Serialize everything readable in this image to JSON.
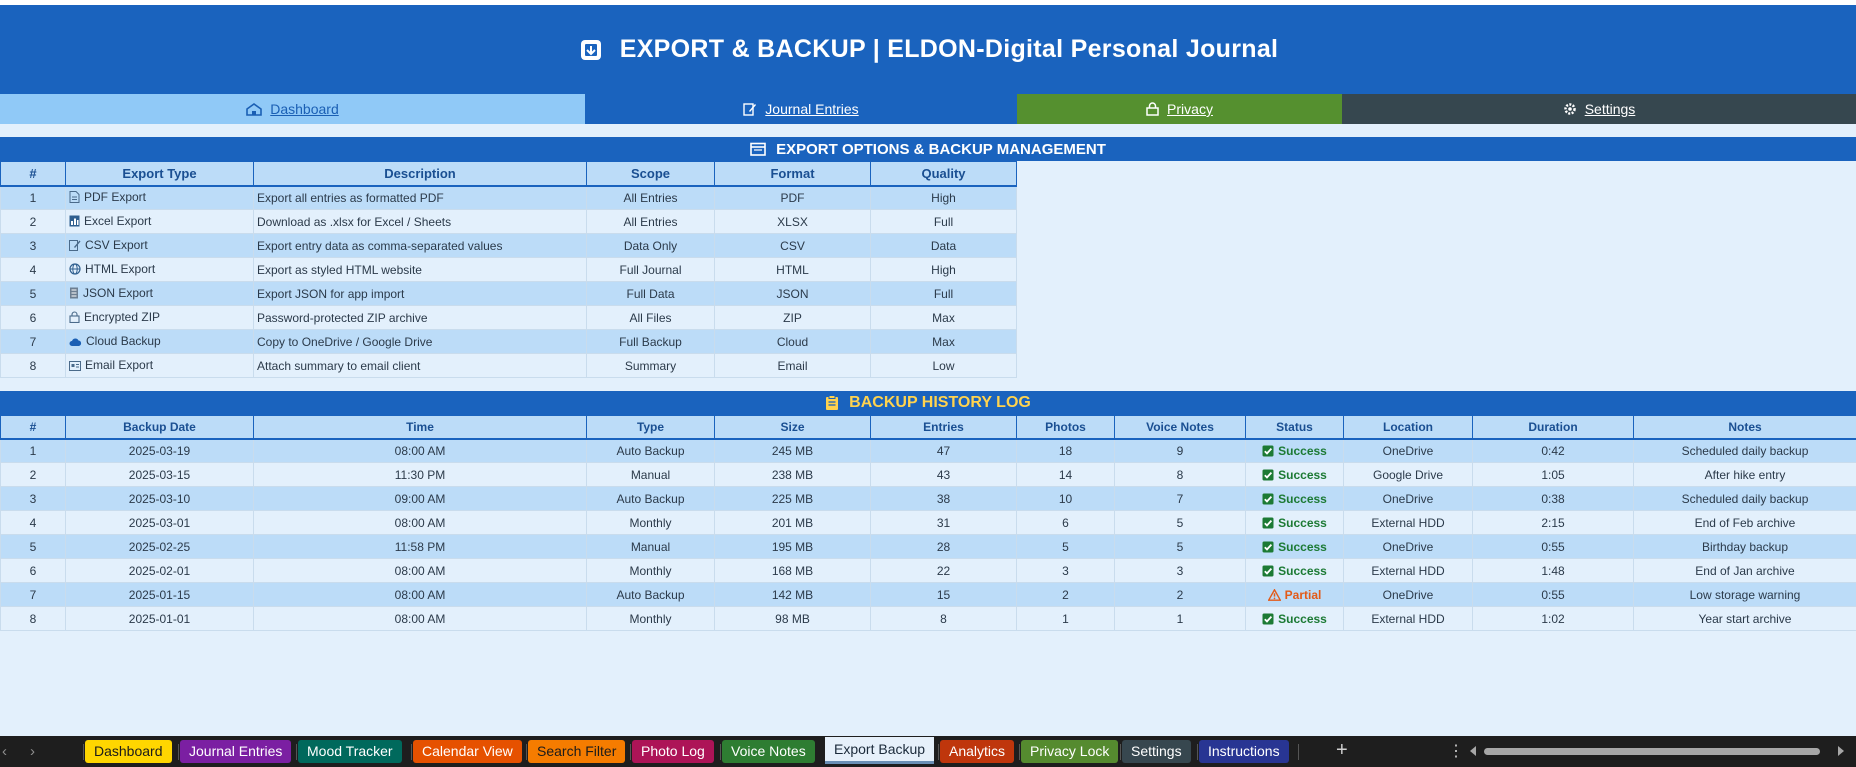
{
  "header": {
    "title": "EXPORT & BACKUP  |  ELDON-Digital Personal Journal"
  },
  "nav": {
    "dashboard": "Dashboard",
    "journal": "Journal Entries",
    "privacy": "Privacy",
    "settings": "Settings"
  },
  "export_section": {
    "title": "EXPORT OPTIONS & BACKUP MANAGEMENT",
    "columns": [
      "#",
      "Export Type",
      "Description",
      "Scope",
      "Format",
      "Quality"
    ],
    "rows": [
      {
        "n": "1",
        "icon": "document-icon",
        "type": "PDF Export",
        "desc": "Export all entries as formatted PDF",
        "scope": "All Entries",
        "format": "PDF",
        "quality": "High"
      },
      {
        "n": "2",
        "icon": "spreadsheet-icon",
        "type": "Excel Export",
        "desc": "Download as .xlsx for Excel / Sheets",
        "scope": "All Entries",
        "format": "XLSX",
        "quality": "Full"
      },
      {
        "n": "3",
        "icon": "edit-document-icon",
        "type": "CSV Export",
        "desc": "Export entry data as comma-separated values",
        "scope": "Data Only",
        "format": "CSV",
        "quality": "Data"
      },
      {
        "n": "4",
        "icon": "globe-icon",
        "type": "HTML Export",
        "desc": "Export as styled HTML website",
        "scope": "Full Journal",
        "format": "HTML",
        "quality": "High"
      },
      {
        "n": "5",
        "icon": "file-stack-icon",
        "type": "JSON Export",
        "desc": "Export JSON for app import",
        "scope": "Full Data",
        "format": "JSON",
        "quality": "Full"
      },
      {
        "n": "6",
        "icon": "lock-icon",
        "type": "Encrypted ZIP",
        "desc": "Password-protected ZIP archive",
        "scope": "All Files",
        "format": "ZIP",
        "quality": "Max"
      },
      {
        "n": "7",
        "icon": "cloud-icon",
        "type": "Cloud Backup",
        "desc": "Copy to OneDrive / Google Drive",
        "scope": "Full Backup",
        "format": "Cloud",
        "quality": "Max"
      },
      {
        "n": "8",
        "icon": "email-icon",
        "type": "Email Export",
        "desc": "Attach summary to email client",
        "scope": "Summary",
        "format": "Email",
        "quality": "Low"
      }
    ]
  },
  "backup_section": {
    "title": "BACKUP HISTORY LOG",
    "columns": [
      "#",
      "Backup Date",
      "Time",
      "Type",
      "Size",
      "Entries",
      "Photos",
      "Voice Notes",
      "Status",
      "Location",
      "Duration",
      "Notes"
    ],
    "rows": [
      {
        "n": "1",
        "date": "2025-03-19",
        "time": "08:00 AM",
        "type": "Auto Backup",
        "size": "245 MB",
        "entries": "47",
        "photos": "18",
        "voice": "9",
        "status": "Success",
        "location": "OneDrive",
        "duration": "0:42",
        "notes": "Scheduled daily backup"
      },
      {
        "n": "2",
        "date": "2025-03-15",
        "time": "11:30 PM",
        "type": "Manual",
        "size": "238 MB",
        "entries": "43",
        "photos": "14",
        "voice": "8",
        "status": "Success",
        "location": "Google Drive",
        "duration": "1:05",
        "notes": "After hike entry"
      },
      {
        "n": "3",
        "date": "2025-03-10",
        "time": "09:00 AM",
        "type": "Auto Backup",
        "size": "225 MB",
        "entries": "38",
        "photos": "10",
        "voice": "7",
        "status": "Success",
        "location": "OneDrive",
        "duration": "0:38",
        "notes": "Scheduled daily backup"
      },
      {
        "n": "4",
        "date": "2025-03-01",
        "time": "08:00 AM",
        "type": "Monthly",
        "size": "201 MB",
        "entries": "31",
        "photos": "6",
        "voice": "5",
        "status": "Success",
        "location": "External HDD",
        "duration": "2:15",
        "notes": "End of Feb archive"
      },
      {
        "n": "5",
        "date": "2025-02-25",
        "time": "11:58 PM",
        "type": "Manual",
        "size": "195 MB",
        "entries": "28",
        "photos": "5",
        "voice": "5",
        "status": "Success",
        "location": "OneDrive",
        "duration": "0:55",
        "notes": "Birthday backup"
      },
      {
        "n": "6",
        "date": "2025-02-01",
        "time": "08:00 AM",
        "type": "Monthly",
        "size": "168 MB",
        "entries": "22",
        "photos": "3",
        "voice": "3",
        "status": "Success",
        "location": "External HDD",
        "duration": "1:48",
        "notes": "End of Jan archive"
      },
      {
        "n": "7",
        "date": "2025-01-15",
        "time": "08:00 AM",
        "type": "Auto Backup",
        "size": "142 MB",
        "entries": "15",
        "photos": "2",
        "voice": "2",
        "status": "Partial",
        "location": "OneDrive",
        "duration": "0:55",
        "notes": "Low storage warning"
      },
      {
        "n": "8",
        "date": "2025-01-01",
        "time": "08:00 AM",
        "type": "Monthly",
        "size": "98 MB",
        "entries": "8",
        "photos": "1",
        "voice": "1",
        "status": "Success",
        "location": "External HDD",
        "duration": "1:02",
        "notes": "Year start archive"
      }
    ]
  },
  "sheet_tabs": [
    {
      "label": "Dashboard",
      "color": "#ffd600",
      "text": "#1b1b1b"
    },
    {
      "label": "Journal Entries",
      "color": "#7b1fa2",
      "text": "#ffffff"
    },
    {
      "label": "Mood Tracker",
      "color": "#00695c",
      "text": "#ffffff"
    },
    {
      "label": "Calendar View",
      "color": "#e65100",
      "text": "#ffffff"
    },
    {
      "label": "Search Filter",
      "color": "#f57c00",
      "text": "#1b1b1b"
    },
    {
      "label": "Photo Log",
      "color": "#ad1457",
      "text": "#ffffff"
    },
    {
      "label": "Voice Notes",
      "color": "#2e7d32",
      "text": "#ffffff"
    },
    {
      "label": "Export Backup",
      "color": "#e6f0fa",
      "text": "#1b2a3a",
      "active": true
    },
    {
      "label": "Analytics",
      "color": "#bf360c",
      "text": "#ffffff"
    },
    {
      "label": "Privacy Lock",
      "color": "#558b2f",
      "text": "#ffffff"
    },
    {
      "label": "Settings",
      "color": "#37474f",
      "text": "#ffffff"
    },
    {
      "label": "Instructions",
      "color": "#283593",
      "text": "#ffffff"
    }
  ]
}
